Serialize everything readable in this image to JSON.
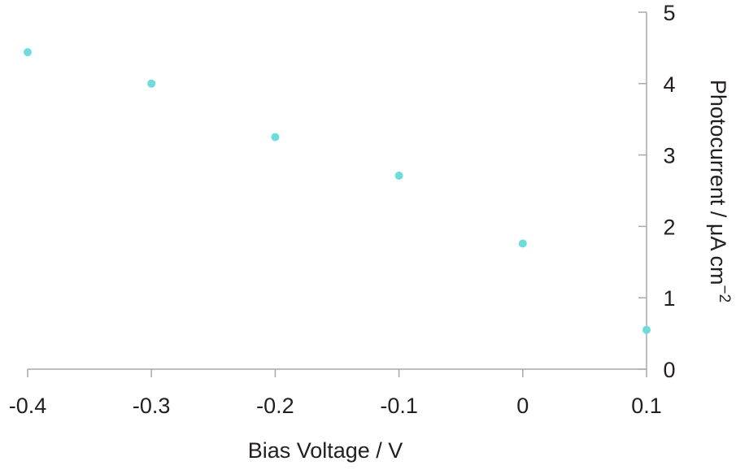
{
  "chart_data": {
    "type": "scatter",
    "title": "",
    "xlabel": "Bias Voltage / V",
    "ylabel_main": "Photocurrent / μA cm",
    "ylabel_sup": "−2",
    "xlim": [
      -0.4,
      0.1
    ],
    "ylim": [
      0,
      5
    ],
    "x_ticks": [
      -0.4,
      -0.3,
      -0.2,
      -0.1,
      0,
      0.1
    ],
    "x_tick_labels": [
      "-0.4",
      "-0.3",
      "-0.2",
      "-0.1",
      "0",
      "0.1"
    ],
    "y_ticks": [
      0,
      1,
      2,
      3,
      4,
      5
    ],
    "y_tick_labels": [
      "0",
      "1",
      "2",
      "3",
      "4",
      "5"
    ],
    "y_axis_position": "right",
    "grid": false,
    "legend": "none",
    "series": [
      {
        "color": "#6fdcdc",
        "x": [
          -0.4,
          -0.3,
          -0.2,
          -0.1,
          0,
          0.1
        ],
        "y": [
          4.44,
          4.0,
          3.25,
          2.71,
          1.76,
          0.55
        ]
      }
    ]
  }
}
